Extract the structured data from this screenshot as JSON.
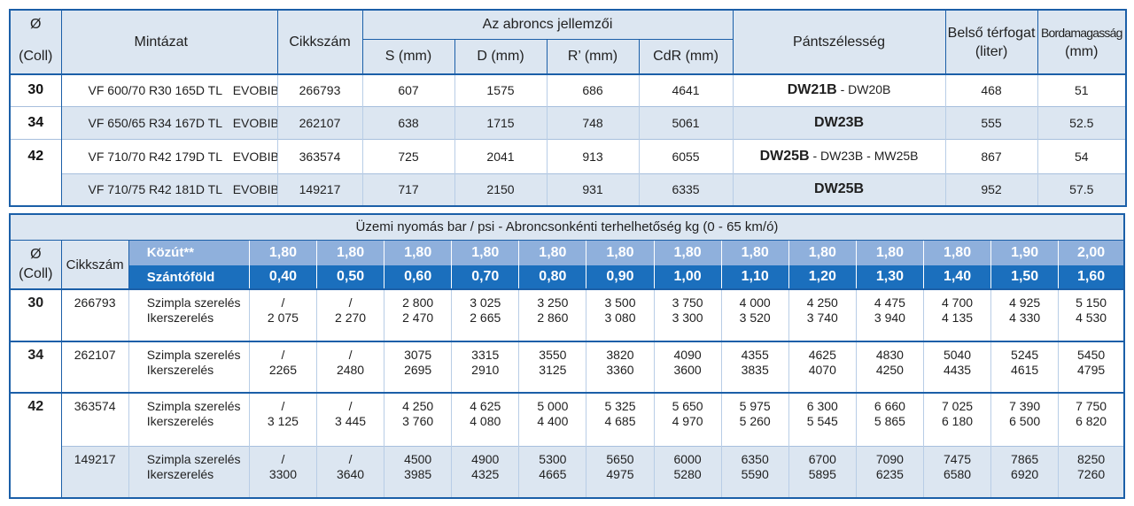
{
  "top": {
    "headers": {
      "diameter": "Ø",
      "coll": "(Coll)",
      "mintazat": "Mintázat",
      "cikkszam": "Cikkszám",
      "group": "Az abroncs jellemzői",
      "s": "S (mm)",
      "d": "D (mm)",
      "r": "R’ (mm)",
      "cdr": "CdR (mm)",
      "pant": "Pántszélesség",
      "belso1": "Belső térfogat",
      "belso2": "(liter)",
      "borda1": "Bordamagasság",
      "borda2": "(mm)"
    },
    "rows": [
      {
        "size": "30",
        "model": "VF 600/70 R30 165D TL",
        "brand": "EVOBIB",
        "code": "266793",
        "s": "607",
        "d": "1575",
        "r": "686",
        "cdr": "4641",
        "rim_bold": "DW21B",
        "rim_rest": " - DW20B",
        "volume": "468",
        "bar": "51"
      },
      {
        "size": "34",
        "model": "VF 650/65 R34 167D TL",
        "brand": "EVOBIB",
        "code": "262107",
        "s": "638",
        "d": "1715",
        "r": "748",
        "cdr": "5061",
        "rim_bold": "DW23B",
        "rim_rest": "",
        "volume": "555",
        "bar": "52.5"
      },
      {
        "size": "42",
        "model": "VF 710/70 R42 179D TL",
        "brand": "EVOBIB",
        "code": "363574",
        "s": "725",
        "d": "2041",
        "r": "913",
        "cdr": "6055",
        "rim_bold": "DW25B",
        "rim_rest": " - DW23B - MW25B",
        "volume": "867",
        "bar": "54"
      },
      {
        "size": "",
        "model": "VF 710/75 R42 181D TL",
        "brand": "EVOBIB",
        "code": "149217",
        "s": "717",
        "d": "2150",
        "r": "931",
        "cdr": "6335",
        "rim_bold": "DW25B",
        "rim_rest": "",
        "volume": "952",
        "bar": "57.5"
      }
    ]
  },
  "bottom": {
    "title": "Üzemi nyomás bar / psi - Abroncsonkénti terhelhetőség kg (0 - 65 km/ó)",
    "diameter": "Ø",
    "coll": "(Coll)",
    "cikkszam": "Cikkszám",
    "road_label": "Közút**",
    "field_label": "Szántóföld",
    "road": [
      "1,80",
      "1,80",
      "1,80",
      "1,80",
      "1,80",
      "1,80",
      "1,80",
      "1,80",
      "1,80",
      "1,80",
      "1,80",
      "1,90",
      "2,00"
    ],
    "field": [
      "0,40",
      "0,50",
      "0,60",
      "0,70",
      "0,80",
      "0,90",
      "1,00",
      "1,10",
      "1,20",
      "1,30",
      "1,40",
      "1,50",
      "1,60"
    ],
    "single": "Szimpla szerelés",
    "twin": "Ikerszerelés",
    "rows": [
      {
        "size": "30",
        "code": "266793",
        "single": [
          "/",
          "/",
          "2 800",
          "3 025",
          "3 250",
          "3 500",
          "3 750",
          "4 000",
          "4 250",
          "4 475",
          "4 700",
          "4 925",
          "5 150"
        ],
        "twin": [
          "2 075",
          "2 270",
          "2 470",
          "2 665",
          "2 860",
          "3 080",
          "3 300",
          "3 520",
          "3 740",
          "3 940",
          "4 135",
          "4 330",
          "4 530"
        ]
      },
      {
        "size": "34",
        "code": "262107",
        "single": [
          "/",
          "/",
          "3075",
          "3315",
          "3550",
          "3820",
          "4090",
          "4355",
          "4625",
          "4830",
          "5040",
          "5245",
          "5450"
        ],
        "twin": [
          "2265",
          "2480",
          "2695",
          "2910",
          "3125",
          "3360",
          "3600",
          "3835",
          "4070",
          "4250",
          "4435",
          "4615",
          "4795"
        ]
      },
      {
        "size": "42",
        "code": "363574",
        "single": [
          "/",
          "/",
          "4 250",
          "4 625",
          "5 000",
          "5 325",
          "5 650",
          "5 975",
          "6 300",
          "6 660",
          "7 025",
          "7 390",
          "7 750"
        ],
        "twin": [
          "3 125",
          "3 445",
          "3 760",
          "4 080",
          "4 400",
          "4 685",
          "4 970",
          "5 260",
          "5 545",
          "5 865",
          "6 180",
          "6 500",
          "6 820"
        ]
      },
      {
        "size": "",
        "code": "149217",
        "single": [
          "/",
          "/",
          "4500",
          "4900",
          "5300",
          "5650",
          "6000",
          "6350",
          "6700",
          "7090",
          "7475",
          "7865",
          "8250"
        ],
        "twin": [
          "3300",
          "3640",
          "3985",
          "4325",
          "4665",
          "4975",
          "5280",
          "5590",
          "5895",
          "6235",
          "6580",
          "6920",
          "7260"
        ]
      }
    ]
  }
}
